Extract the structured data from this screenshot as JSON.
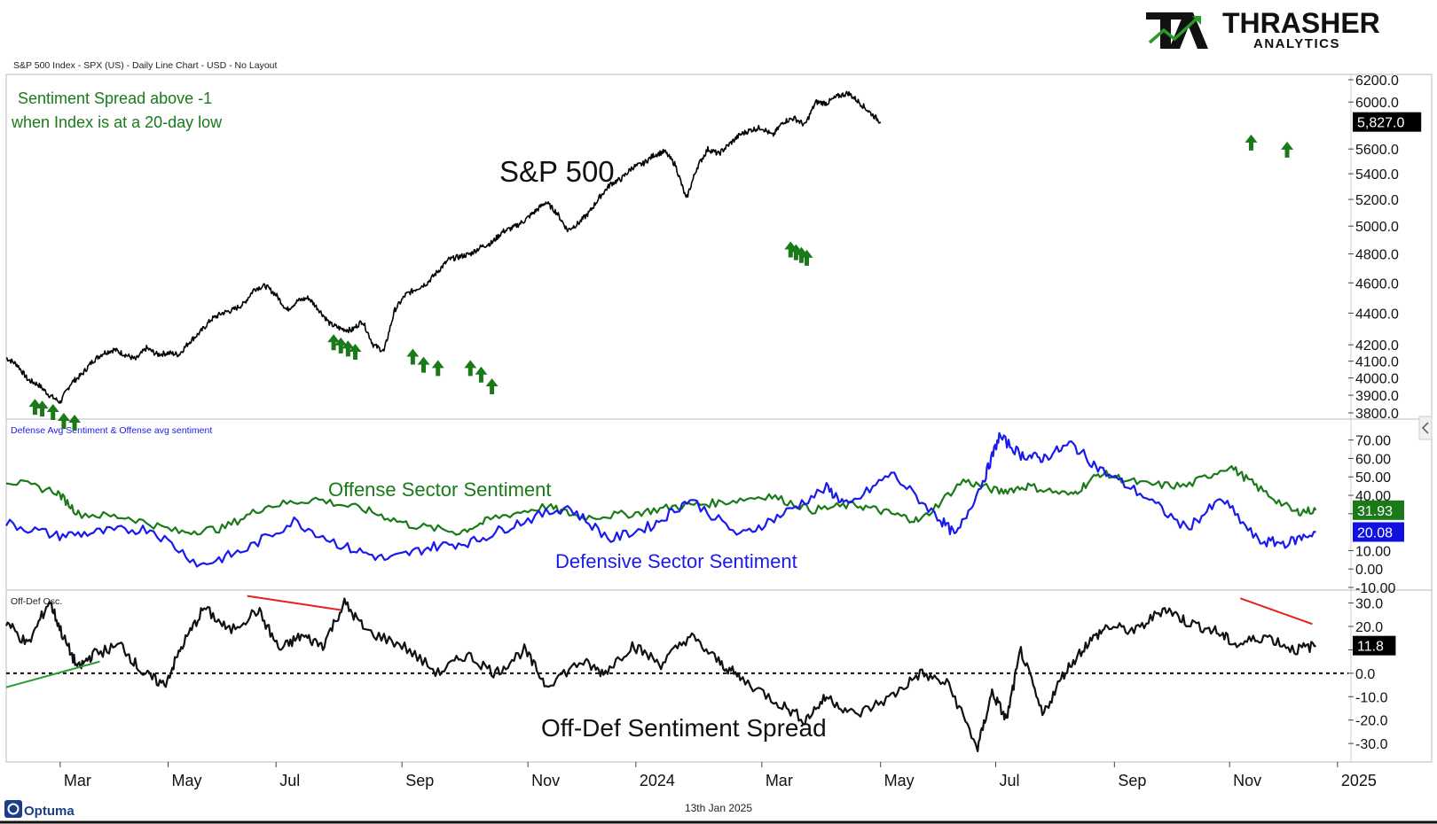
{
  "header": {
    "chart_info": "S&P 500 Index - SPX (US) - Daily Line Chart - USD - No Layout",
    "logo_word": "THRASHER",
    "logo_sub": "ANALYTICS"
  },
  "footer": {
    "brand": "Optuma",
    "date": "13th Jan 2025"
  },
  "colors": {
    "price": "#000000",
    "offense": "#1a7a1a",
    "defense": "#1a1aee",
    "signal": "#1a7a1a",
    "trend_red": "#e8201a",
    "trend_green": "#2a9a2a",
    "logo_green": "#2a9a2a"
  },
  "chart_data": [
    {
      "type": "line",
      "panel": "price",
      "title": "S&P 500",
      "annotation": [
        "Sentiment Spread above -1",
        "when Index is at a 20-day low"
      ],
      "y_tick_labels": [
        "6200.0",
        "6000.0",
        "5600.0",
        "5400.0",
        "5200.0",
        "5000.0",
        "4800.0",
        "4600.0",
        "4400.0",
        "4200.0",
        "4100.0",
        "4000.0",
        "3900.0",
        "3800.0"
      ],
      "y_tick_values": [
        6200,
        6000,
        5600,
        5400,
        5200,
        5000,
        4800,
        4600,
        4400,
        4200,
        4100,
        4000,
        3900,
        3800
      ],
      "ylim": [
        3800,
        6200
      ],
      "scale": "log",
      "last_value_label": "5,827.0",
      "last_value": 5827,
      "x": [
        0,
        0.3,
        0.6,
        0.9,
        1.2,
        1.5,
        1.8,
        2.1,
        2.4,
        2.7,
        3.0,
        3.3,
        3.6,
        3.9,
        4.2,
        4.5,
        4.8,
        5.1,
        5.4,
        5.7,
        6.0,
        6.3,
        6.6,
        6.9,
        7.2,
        7.5,
        7.8,
        8.1,
        8.4,
        8.7,
        9.0,
        9.3,
        9.6,
        9.9,
        10.2,
        10.5,
        10.8,
        11.1,
        11.4,
        11.7,
        12.0,
        12.3,
        12.6,
        12.9,
        13.2,
        13.5,
        13.8,
        14.1,
        14.4,
        14.7,
        15.0,
        15.3,
        15.6,
        15.9,
        16.2,
        16.5,
        16.8,
        17.1,
        17.4,
        17.7,
        18.0,
        18.3,
        18.6,
        18.9,
        19.2,
        19.5,
        19.8,
        20.1,
        20.4,
        20.7,
        21.0,
        21.3,
        21.6,
        21.9,
        22.2,
        22.5,
        22.8,
        23.1,
        23.4,
        23.7,
        24.0,
        24.3
      ],
      "values": [
        4120,
        4080,
        3990,
        3960,
        3900,
        3860,
        3970,
        4020,
        4100,
        4150,
        4170,
        4140,
        4110,
        4180,
        4140,
        4150,
        4140,
        4220,
        4280,
        4360,
        4400,
        4420,
        4460,
        4560,
        4580,
        4520,
        4420,
        4480,
        4500,
        4420,
        4330,
        4300,
        4290,
        4350,
        4200,
        4160,
        4420,
        4520,
        4560,
        4600,
        4680,
        4760,
        4780,
        4800,
        4850,
        4880,
        4960,
        4990,
        5040,
        5110,
        5180,
        5100,
        4970,
        5020,
        5100,
        5220,
        5320,
        5360,
        5450,
        5480,
        5550,
        5580,
        5470,
        5200,
        5450,
        5600,
        5560,
        5640,
        5720,
        5760,
        5780,
        5710,
        5830,
        5860,
        5800,
        6000,
        5990,
        6050,
        6080,
        6000,
        5910,
        5827
      ],
      "signals": [
        {
          "x": 0.8,
          "y": 3920
        },
        {
          "x": 1.0,
          "y": 3910
        },
        {
          "x": 1.3,
          "y": 3890
        },
        {
          "x": 1.6,
          "y": 3840
        },
        {
          "x": 1.9,
          "y": 3830
        },
        {
          "x": 9.1,
          "y": 4310
        },
        {
          "x": 9.3,
          "y": 4290
        },
        {
          "x": 9.5,
          "y": 4270
        },
        {
          "x": 9.7,
          "y": 4250
        },
        {
          "x": 11.3,
          "y": 4220
        },
        {
          "x": 11.6,
          "y": 4170
        },
        {
          "x": 12.0,
          "y": 4150
        },
        {
          "x": 12.9,
          "y": 4150
        },
        {
          "x": 13.2,
          "y": 4110
        },
        {
          "x": 13.5,
          "y": 4040
        },
        {
          "x": 21.8,
          "y": 4940
        },
        {
          "x": 21.95,
          "y": 4920
        },
        {
          "x": 22.1,
          "y": 4900
        },
        {
          "x": 22.25,
          "y": 4880
        },
        {
          "x": 34.6,
          "y": 5780
        },
        {
          "x": 35.6,
          "y": 5720
        }
      ]
    },
    {
      "type": "line",
      "panel": "sentiment",
      "title": "Defense Avg Sentiment & Offense avg sentiment",
      "y_tick_labels": [
        "70.00",
        "60.00",
        "50.00",
        "40.00",
        "30.00",
        "10.00",
        "0.00",
        "-10.00"
      ],
      "y_tick_values": [
        70,
        60,
        50,
        40,
        30,
        10,
        0,
        -10
      ],
      "ylim": [
        -10,
        78
      ],
      "series": [
        {
          "name": "Offense Sector Sentiment",
          "last_value_label": "31.93",
          "x": [
            0,
            1.4,
            2.0,
            3.4,
            4.8,
            6.0,
            7.2,
            8.6,
            10.0,
            11.2,
            12.6,
            13.6,
            15.0,
            16.0,
            17.4,
            18.6,
            19.8,
            21.2,
            22.4,
            23.6,
            24.6,
            25.4,
            26.6,
            27.6,
            28.4,
            29.6,
            30.4,
            31.6,
            32.8,
            34.0,
            34.8,
            35.8,
            36.4
          ],
          "values": [
            48,
            42,
            30,
            28,
            20,
            22,
            34,
            38,
            32,
            24,
            20,
            28,
            34,
            28,
            30,
            34,
            36,
            40,
            32,
            35,
            30,
            26,
            48,
            42,
            45,
            40,
            52,
            46,
            45,
            56,
            44,
            31,
            31.93
          ]
        },
        {
          "name": "Defensive Sector Sentiment",
          "last_value_label": "20.08",
          "x": [
            0,
            1.4,
            2.6,
            4.0,
            5.4,
            6.6,
            8.0,
            9.4,
            10.6,
            11.8,
            13.0,
            14.2,
            15.6,
            16.8,
            18.0,
            19.0,
            20.4,
            21.6,
            22.8,
            23.4,
            24.6,
            25.8,
            26.4,
            27.2,
            27.6,
            28.2,
            28.8,
            29.6,
            30.4,
            31.6,
            32.8,
            33.8,
            34.8,
            35.6,
            36.4
          ],
          "values": [
            25,
            18,
            20,
            22,
            2,
            10,
            26,
            12,
            5,
            12,
            15,
            25,
            34,
            16,
            24,
            38,
            18,
            30,
            44,
            34,
            52,
            30,
            18,
            50,
            72,
            62,
            60,
            68,
            54,
            40,
            22,
            38,
            15,
            14,
            20.08
          ]
        }
      ]
    },
    {
      "type": "line",
      "panel": "spread",
      "title": "Off-Def Osc.",
      "label": "Off-Def Sentiment Spread",
      "y_tick_labels": [
        "30.0",
        "20.0",
        "10.0",
        "0.0",
        "-10.0",
        "-20.0",
        "-30.0"
      ],
      "y_tick_values": [
        30,
        20,
        10,
        0,
        -10,
        -20,
        -30
      ],
      "ylim": [
        -36,
        34
      ],
      "last_value_label": "11.8",
      "zero_line": true,
      "x": [
        0,
        0.6,
        1.2,
        1.6,
        2.0,
        2.4,
        3.2,
        3.8,
        4.4,
        4.9,
        5.5,
        6.2,
        7.0,
        7.6,
        8.2,
        8.8,
        9.4,
        10.0,
        11.0,
        12.0,
        12.8,
        13.6,
        14.4,
        15.0,
        16.0,
        16.6,
        17.4,
        18.2,
        19.0,
        19.8,
        20.4,
        21.4,
        22.2,
        22.8,
        23.6,
        24.6,
        25.4,
        26.2,
        27.0,
        27.4,
        27.8,
        28.2,
        28.8,
        29.4,
        30.0,
        30.6,
        31.4,
        32.2,
        32.8,
        33.6,
        34.2,
        35.0,
        35.8,
        36.4
      ],
      "values": [
        22,
        12,
        31,
        15,
        2,
        8,
        12,
        0,
        -5,
        12,
        28,
        18,
        27,
        10,
        16,
        12,
        30,
        18,
        12,
        0,
        8,
        0,
        10,
        -5,
        5,
        0,
        12,
        4,
        16,
        5,
        -2,
        -12,
        -20,
        -10,
        -18,
        -10,
        0,
        -5,
        -32,
        -8,
        -20,
        10,
        -18,
        0,
        12,
        20,
        18,
        28,
        22,
        18,
        12,
        16,
        10,
        11.8
      ],
      "trendlines": [
        {
          "color": "trend_green",
          "x": [
            0,
            2.6
          ],
          "values": [
            -6,
            5
          ]
        },
        {
          "color": "trend_red",
          "x": [
            6.7,
            9.3
          ],
          "values": [
            33,
            27
          ]
        },
        {
          "color": "trend_red",
          "x": [
            34.3,
            36.3
          ],
          "values": [
            32,
            21
          ]
        }
      ]
    }
  ],
  "x_axis": {
    "labels": [
      "Mar",
      "May",
      "Jul",
      "Sep",
      "Nov",
      "2024",
      "Mar",
      "May",
      "Jul",
      "Sep",
      "Nov",
      "2025"
    ],
    "positions": [
      1.5,
      4.5,
      7.5,
      11.0,
      14.5,
      17.5,
      21.0,
      24.3,
      27.5,
      30.8,
      34.0,
      37.0
    ]
  }
}
